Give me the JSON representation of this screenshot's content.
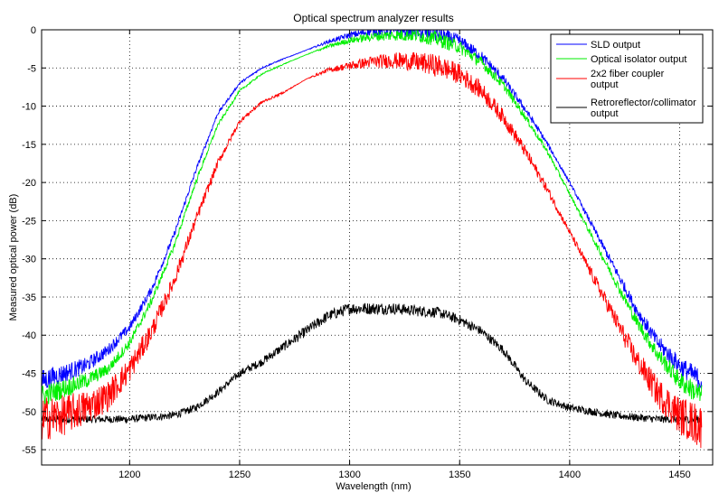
{
  "chart_data": {
    "type": "line",
    "title": "Optical spectrum analyzer results",
    "xlabel": "Wavelength (nm)",
    "ylabel": "Measured optical power (dB)",
    "xlim": [
      1160,
      1465
    ],
    "ylim": [
      -57,
      0
    ],
    "xticks": [
      1200,
      1250,
      1300,
      1350,
      1400,
      1450
    ],
    "yticks": [
      0,
      -5,
      -10,
      -15,
      -20,
      -25,
      -30,
      -35,
      -40,
      -45,
      -50,
      -55
    ],
    "grid": true,
    "grid_style": "dotted",
    "legend_position": "top-right",
    "series": [
      {
        "name": "SLD output",
        "color": "#0000ff",
        "noise": [
          1.5,
          0.8,
          0.4,
          0.15,
          0.02,
          0.6,
          1.0,
          0.6,
          0.2,
          0.8,
          1.5
        ],
        "x": [
          1160,
          1170,
          1180,
          1190,
          1200,
          1210,
          1220,
          1230,
          1240,
          1250,
          1260,
          1270,
          1280,
          1290,
          1300,
          1310,
          1320,
          1330,
          1340,
          1350,
          1360,
          1370,
          1380,
          1390,
          1400,
          1410,
          1420,
          1430,
          1440,
          1450,
          1460
        ],
        "y": [
          -46,
          -45,
          -44,
          -42,
          -39,
          -34,
          -27,
          -18.5,
          -11,
          -7,
          -5,
          -3.8,
          -2.7,
          -1.6,
          -0.7,
          -0.2,
          -0.1,
          -0.2,
          -0.6,
          -1.5,
          -3.5,
          -6.5,
          -10.5,
          -15,
          -20,
          -25.5,
          -31,
          -36.5,
          -41,
          -44,
          -46
        ]
      },
      {
        "name": "Optical isolator output",
        "color": "#00ee00",
        "noise": [
          1.5,
          0.8,
          0.4,
          0.15,
          0.02,
          0.6,
          1.0,
          0.6,
          0.2,
          0.8,
          1.5
        ],
        "x": [
          1160,
          1170,
          1180,
          1190,
          1200,
          1210,
          1220,
          1230,
          1240,
          1250,
          1260,
          1270,
          1280,
          1290,
          1300,
          1310,
          1320,
          1330,
          1340,
          1350,
          1360,
          1370,
          1380,
          1390,
          1400,
          1410,
          1420,
          1430,
          1440,
          1450,
          1460
        ],
        "y": [
          -48,
          -47,
          -46,
          -44.5,
          -41,
          -35.5,
          -28.5,
          -20,
          -12.5,
          -8,
          -5.8,
          -4.5,
          -3.3,
          -2.2,
          -1.4,
          -0.9,
          -0.7,
          -0.7,
          -1.2,
          -2.3,
          -4.3,
          -7.3,
          -11.5,
          -16,
          -21.5,
          -27,
          -32.5,
          -38,
          -42.5,
          -46,
          -48
        ]
      },
      {
        "name": "2x2 fiber coupler output",
        "color": "#ff0000",
        "noise": [
          3.0,
          2.0,
          1.0,
          0.3,
          0.02,
          0.8,
          1.5,
          1.0,
          0.4,
          1.5,
          3.0
        ],
        "x": [
          1160,
          1170,
          1180,
          1190,
          1200,
          1210,
          1220,
          1230,
          1240,
          1250,
          1260,
          1270,
          1280,
          1290,
          1300,
          1310,
          1320,
          1330,
          1340,
          1350,
          1360,
          1370,
          1380,
          1390,
          1400,
          1410,
          1420,
          1430,
          1440,
          1450,
          1460
        ],
        "y": [
          -51,
          -50.5,
          -49.5,
          -48,
          -44.5,
          -39.5,
          -33,
          -25,
          -17.5,
          -12,
          -9.5,
          -8.2,
          -6.5,
          -5.3,
          -4.7,
          -4.2,
          -4,
          -4.2,
          -4.7,
          -5.8,
          -8,
          -11.5,
          -16,
          -21,
          -26.5,
          -32,
          -37.5,
          -43,
          -47.5,
          -50.5,
          -52
        ]
      },
      {
        "name": "Retroreflector/collimator output",
        "color": "#000000",
        "noise": [
          0.5,
          0.5,
          0.5,
          0.5,
          0.7,
          0.8,
          0.7,
          0.6,
          0.5,
          0.5,
          0.5
        ],
        "x": [
          1160,
          1180,
          1200,
          1220,
          1230,
          1240,
          1250,
          1260,
          1270,
          1280,
          1290,
          1300,
          1310,
          1320,
          1330,
          1340,
          1350,
          1360,
          1370,
          1380,
          1390,
          1400,
          1410,
          1420,
          1440,
          1460
        ],
        "y": [
          -51,
          -51,
          -51,
          -50.5,
          -49.5,
          -47.5,
          -45,
          -43.5,
          -41.5,
          -39.5,
          -37.5,
          -36.5,
          -36.5,
          -36.5,
          -36.8,
          -37,
          -38,
          -39.5,
          -42,
          -46,
          -48.5,
          -49.5,
          -50,
          -50.5,
          -51,
          -51
        ]
      }
    ],
    "legend": {
      "entries": [
        [
          "SLD output"
        ],
        [
          "Optical isolator output"
        ],
        [
          "2x2 fiber coupler",
          "output"
        ],
        [
          "Retroreflector/collimator",
          "output"
        ]
      ]
    }
  }
}
